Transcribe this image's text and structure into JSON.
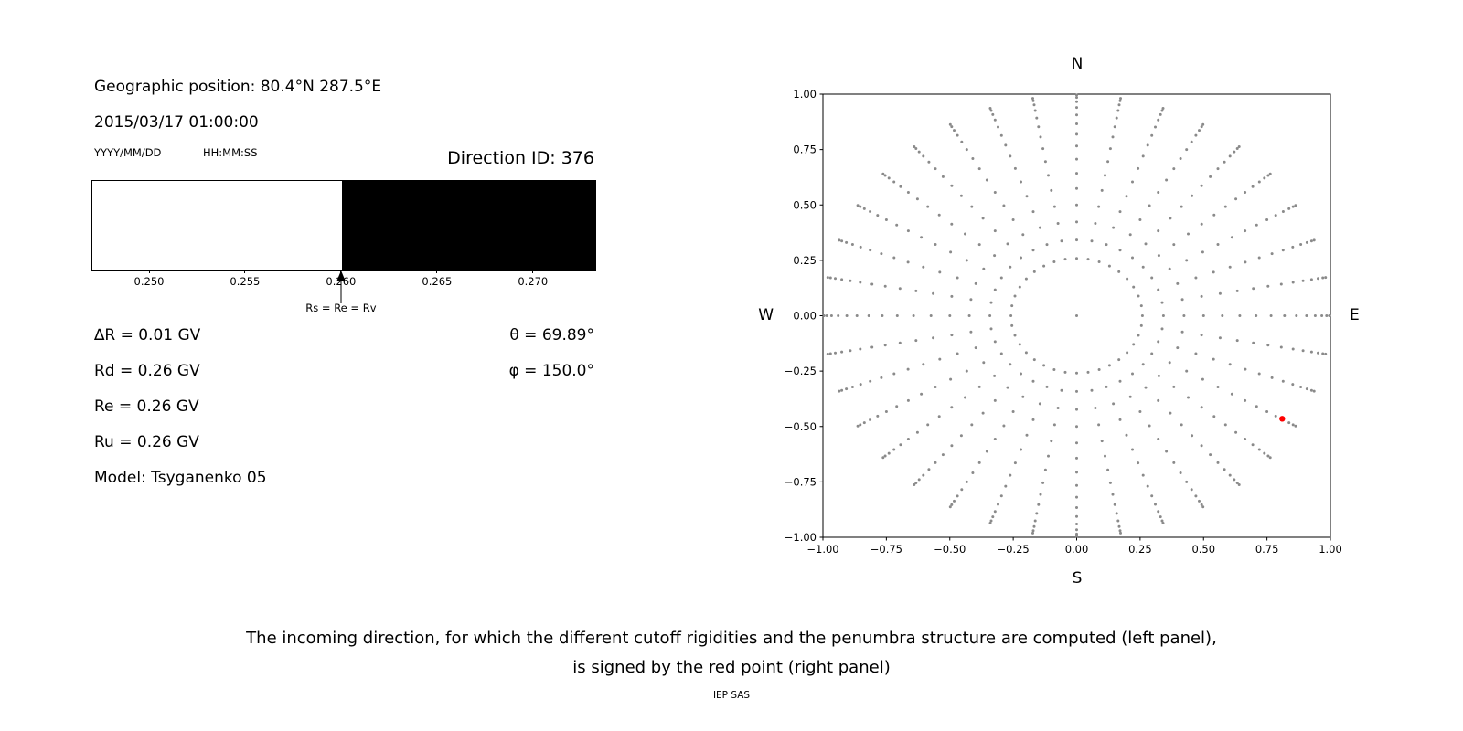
{
  "left_panel": {
    "geo_position": "Geographic position: 80.4°N 287.5°E",
    "datetime": "2015/03/17 01:00:00",
    "date_format_label": "YYYY/MM/DD",
    "time_format_label": "HH:MM:SS",
    "direction_id": "Direction ID: 376",
    "params": [
      "∆R = 0.01 GV",
      "Rd = 0.26 GV",
      "Re = 0.26 GV",
      "Ru = 0.26 GV",
      "Model: Tsyganenko 05"
    ],
    "theta": "θ = 69.89°",
    "phi": "φ = 150.0°"
  },
  "caption": {
    "line1": "The incoming direction, for which the different cutoff rigidities and the penumbra structure are computed (left panel),",
    "line2": "is signed by the red point (right panel)",
    "credit": "IEP SAS"
  },
  "chart_data": [
    {
      "id": "penumbra-structure",
      "type": "bar",
      "xlim": [
        0.247,
        0.2732
      ],
      "xtick_values": [
        0.25,
        0.255,
        0.26,
        0.265,
        0.27
      ],
      "xtick_labels": [
        "0.250",
        "0.255",
        "0.260",
        "0.265",
        "0.270"
      ],
      "regions": [
        {
          "from": 0.247,
          "to": 0.26,
          "color": "#ffffff"
        },
        {
          "from": 0.26,
          "to": 0.2732,
          "color": "#000000"
        }
      ],
      "marker": {
        "x": 0.26,
        "label": "Rs = Re = Rv"
      }
    },
    {
      "id": "incoming-direction-map",
      "type": "scatter",
      "xlim": [
        -1.0,
        1.0
      ],
      "ylim": [
        -1.0,
        1.0
      ],
      "xtick_values": [
        -1.0,
        -0.75,
        -0.5,
        -0.25,
        0.0,
        0.25,
        0.5,
        0.75,
        1.0
      ],
      "xtick_labels": [
        "−1.00",
        "−0.75",
        "−0.50",
        "−0.25",
        "0.00",
        "0.25",
        "0.50",
        "0.75",
        "1.00"
      ],
      "ytick_values": [
        -1.0,
        -0.75,
        -0.5,
        -0.25,
        0.0,
        0.25,
        0.5,
        0.75,
        1.0
      ],
      "ytick_labels": [
        "−1.00",
        "−0.75",
        "−0.50",
        "−0.25",
        "0.00",
        "0.25",
        "0.50",
        "0.75",
        "1.00"
      ],
      "compass_labels": {
        "top": "N",
        "bottom": "S",
        "left": "W",
        "right": "E"
      },
      "grid_dots": {
        "color": "#8a8a8a",
        "azimuth_step_deg": 10,
        "ring_radii": [
          0.259,
          0.342,
          0.423,
          0.5,
          0.574,
          0.643,
          0.707,
          0.766,
          0.819,
          0.866,
          0.906,
          0.94,
          0.966,
          0.985,
          0.996
        ],
        "center_dot": true
      },
      "red_point": {
        "x": 0.81,
        "y": -0.465,
        "color": "#ff0000"
      }
    }
  ]
}
